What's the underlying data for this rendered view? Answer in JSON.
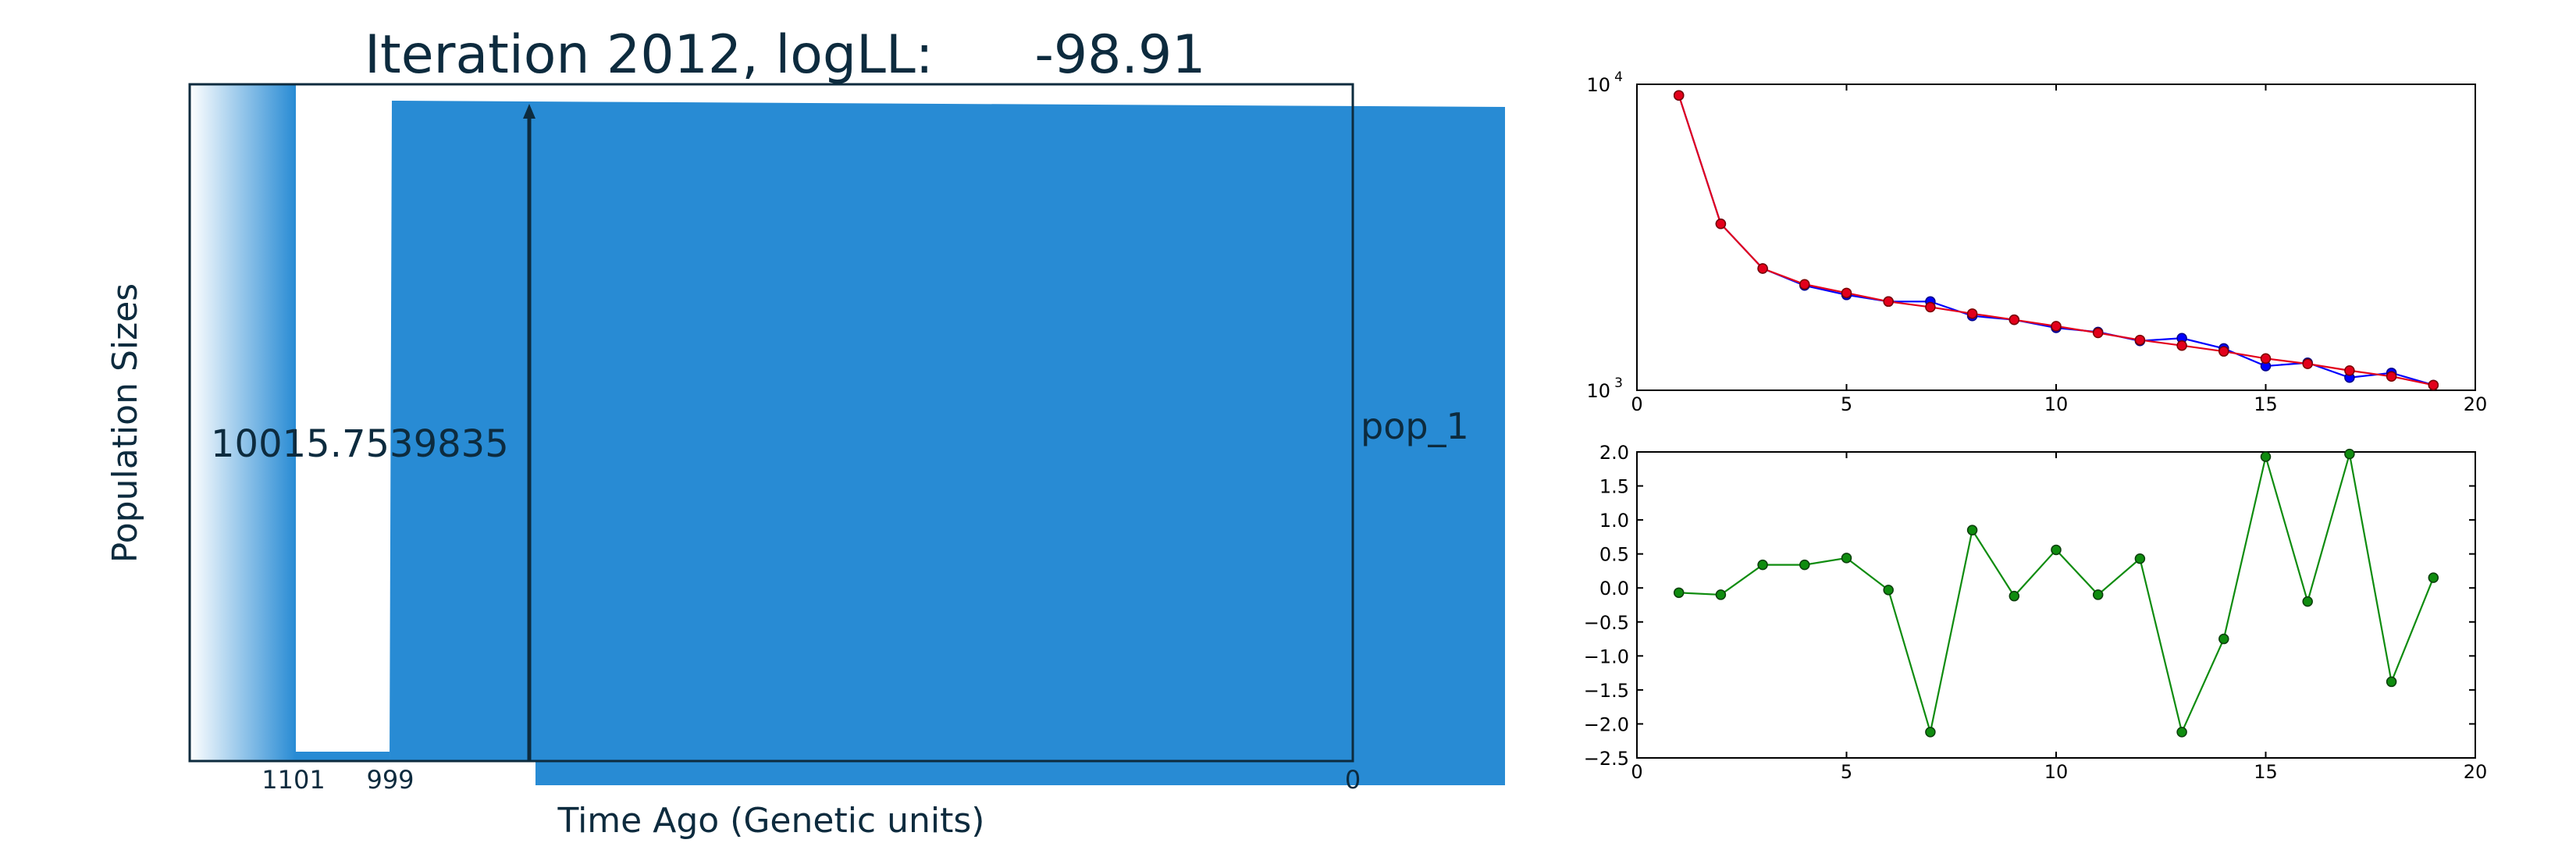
{
  "colors": {
    "demo_blue": "#288bd4",
    "dark_text": "#0d2b3e",
    "series_blue": "#0000ff",
    "series_red": "#e3001b",
    "series_green": "#0f8c0f",
    "marker_dark_red": "#7a0000",
    "marker_dark_green": "#0b3d0b"
  },
  "chart_data": [
    {
      "type": "area",
      "title": "Iteration 2012, logLL:      -98.91",
      "ylabel": "Population Sizes",
      "xlabel": "Time Ago (Genetic units)",
      "tick_labels": [
        "1101",
        "999",
        "0"
      ],
      "population_label": "pop_1",
      "population_size_label": "10015.7539835"
    },
    {
      "type": "line",
      "y_scale": "log",
      "xlim": [
        0,
        20
      ],
      "ylim": [
        1000,
        10000
      ],
      "x_ticks": [
        0,
        5,
        10,
        15,
        20
      ],
      "y_ticks": [
        1000,
        10000
      ],
      "y_tick_labels": [
        {
          "base": "10",
          "exp": "3"
        },
        {
          "base": "10",
          "exp": "4"
        }
      ],
      "grid": false,
      "x": [
        1,
        2,
        3,
        4,
        5,
        6,
        7,
        8,
        9,
        10,
        11,
        12,
        13,
        14,
        15,
        16,
        17,
        18,
        19
      ],
      "series": [
        {
          "color": "#0000ff",
          "values": [
            9200,
            3500,
            2500,
            2200,
            2050,
            1950,
            1950,
            1750,
            1700,
            1600,
            1550,
            1450,
            1480,
            1370,
            1200,
            1230,
            1100,
            1140,
            1040
          ]
        },
        {
          "color": "#e3001b",
          "values": [
            9200,
            3500,
            2500,
            2220,
            2080,
            1950,
            1870,
            1780,
            1700,
            1620,
            1540,
            1460,
            1400,
            1340,
            1270,
            1220,
            1160,
            1110,
            1040
          ]
        }
      ]
    },
    {
      "type": "line",
      "xlim": [
        0,
        20
      ],
      "ylim": [
        -2.5,
        2.0
      ],
      "x_ticks": [
        0,
        5,
        10,
        15,
        20
      ],
      "y_ticks": [
        -2.5,
        -2.0,
        -1.5,
        -1.0,
        -0.5,
        0.0,
        0.5,
        1.0,
        1.5,
        2.0
      ],
      "y_tick_labels": [
        "−2.5",
        "−2.0",
        "−1.5",
        "−1.0",
        "−0.5",
        "0.0",
        "0.5",
        "1.0",
        "1.5",
        "2.0"
      ],
      "grid": false,
      "x": [
        1,
        2,
        3,
        4,
        5,
        6,
        7,
        8,
        9,
        10,
        11,
        12,
        13,
        14,
        15,
        16,
        17,
        18,
        19
      ],
      "series": [
        {
          "color": "#0f8c0f",
          "values": [
            -0.07,
            -0.1,
            0.34,
            0.34,
            0.44,
            -0.03,
            -2.12,
            0.85,
            -0.12,
            0.56,
            -0.1,
            0.43,
            -2.12,
            -0.75,
            1.93,
            -0.2,
            1.97,
            -1.38,
            0.15
          ]
        }
      ]
    }
  ]
}
